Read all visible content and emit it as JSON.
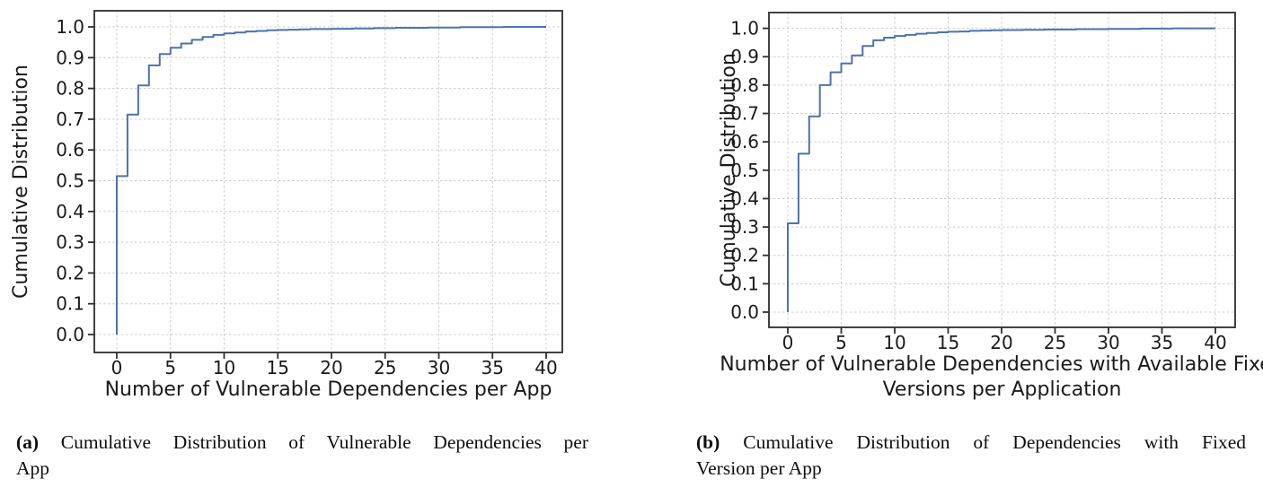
{
  "figure": {
    "background": "#ffffff",
    "accent_line_color": "#4c72b0",
    "grid_color": "#cccccc",
    "spine_color": "#2e2e2e"
  },
  "captions": {
    "a": {
      "tag": "(a)",
      "line1": "Cumulative Distribution of Vulnerable Dependencies per",
      "line2": "App",
      "full_text": "(a) Cumulative Distribution of Vulnerable Dependencies per App"
    },
    "b": {
      "tag": "(b)",
      "line1": "Cumulative Distribution of Dependencies with Fixed",
      "line2": "Version per App",
      "full_text": "(b) Cumulative Distribution of Dependencies with Fixed Version per App"
    }
  },
  "chart_data": [
    {
      "type": "line",
      "subtype": "cdf-step",
      "title": "",
      "xlabel_lines": [
        "Number of Vulnerable Dependencies per App"
      ],
      "ylabel": "Cumulative Distribution",
      "xlim": [
        -2,
        42
      ],
      "ylim": [
        -0.05,
        1.05
      ],
      "grid": true,
      "legend": "none",
      "line_color": "#4c72b0",
      "xtick_values": [
        0,
        5,
        10,
        15,
        20,
        25,
        30,
        35,
        40
      ],
      "xtick_labels": [
        "0",
        "5",
        "10",
        "15",
        "20",
        "25",
        "30",
        "35",
        "40"
      ],
      "ytick_values": [
        0.0,
        0.1,
        0.2,
        0.3,
        0.4,
        0.5,
        0.6,
        0.7,
        0.8,
        0.9,
        1.0
      ],
      "ytick_labels": [
        "0.0",
        "0.1",
        "0.2",
        "0.3",
        "0.4",
        "0.5",
        "0.6",
        "0.7",
        "0.8",
        "0.9",
        "1.0"
      ],
      "points": [
        [
          0,
          0.515
        ],
        [
          1,
          0.715
        ],
        [
          2,
          0.81
        ],
        [
          3,
          0.875
        ],
        [
          4,
          0.912
        ],
        [
          5,
          0.932
        ],
        [
          6,
          0.946
        ],
        [
          7,
          0.958
        ],
        [
          8,
          0.967
        ],
        [
          9,
          0.974
        ],
        [
          10,
          0.979
        ],
        [
          11,
          0.982
        ],
        [
          12,
          0.985
        ],
        [
          13,
          0.987
        ],
        [
          14,
          0.989
        ],
        [
          15,
          0.99
        ],
        [
          16,
          0.991
        ],
        [
          17,
          0.992
        ],
        [
          18,
          0.993
        ],
        [
          20,
          0.994
        ],
        [
          22,
          0.995
        ],
        [
          24,
          0.996
        ],
        [
          26,
          0.997
        ],
        [
          29,
          0.998
        ],
        [
          32,
          0.999
        ],
        [
          36,
          1.0
        ],
        [
          40,
          1.0
        ]
      ]
    },
    {
      "type": "line",
      "subtype": "cdf-step",
      "title": "",
      "xlabel_lines": [
        "Number of Vulnerable Dependencies with Available Fixed",
        "Versions per Application"
      ],
      "ylabel": "Cumulative Distribution",
      "xlim": [
        -2,
        42
      ],
      "ylim": [
        -0.05,
        1.05
      ],
      "grid": true,
      "legend": "none",
      "line_color": "#4c72b0",
      "xtick_values": [
        0,
        5,
        10,
        15,
        20,
        25,
        30,
        35,
        40
      ],
      "xtick_labels": [
        "0",
        "5",
        "10",
        "15",
        "20",
        "25",
        "30",
        "35",
        "40"
      ],
      "ytick_values": [
        0.0,
        0.1,
        0.2,
        0.3,
        0.4,
        0.5,
        0.6,
        0.7,
        0.8,
        0.9,
        1.0
      ],
      "ytick_labels": [
        "0.0",
        "0.1",
        "0.2",
        "0.3",
        "0.4",
        "0.5",
        "0.6",
        "0.7",
        "0.8",
        "0.9",
        "1.0"
      ],
      "points": [
        [
          0,
          0.313
        ],
        [
          1,
          0.558
        ],
        [
          2,
          0.69
        ],
        [
          3,
          0.8
        ],
        [
          4,
          0.845
        ],
        [
          5,
          0.876
        ],
        [
          6,
          0.905
        ],
        [
          7,
          0.938
        ],
        [
          8,
          0.958
        ],
        [
          9,
          0.967
        ],
        [
          10,
          0.973
        ],
        [
          11,
          0.977
        ],
        [
          12,
          0.981
        ],
        [
          13,
          0.984
        ],
        [
          14,
          0.986
        ],
        [
          15,
          0.988
        ],
        [
          16,
          0.989
        ],
        [
          17,
          0.991
        ],
        [
          18,
          0.992
        ],
        [
          19,
          0.993
        ],
        [
          20,
          0.994
        ],
        [
          22,
          0.995
        ],
        [
          24,
          0.996
        ],
        [
          27,
          0.997
        ],
        [
          30,
          0.998
        ],
        [
          33,
          0.999
        ],
        [
          36,
          1.0
        ],
        [
          40,
          1.0
        ]
      ]
    }
  ]
}
